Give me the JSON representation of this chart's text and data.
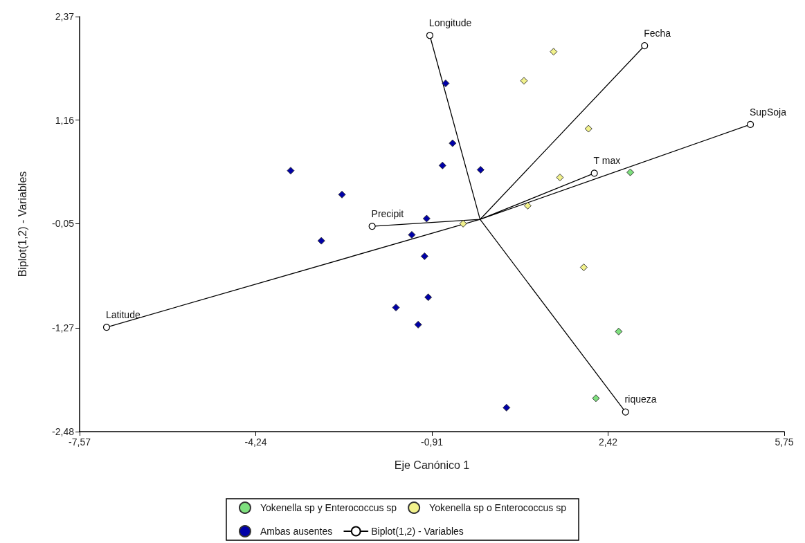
{
  "chart_data": {
    "type": "scatter",
    "xlabel": "Eje Canónico 1",
    "ylabel": "Biplot(1,2) - Variables",
    "xlim": [
      -7.57,
      5.75
    ],
    "xticks": [
      {
        "value": -7.57,
        "label": "-7,57"
      },
      {
        "value": -4.24,
        "label": "-4,24"
      },
      {
        "value": -0.91,
        "label": "-0,91"
      },
      {
        "value": 2.42,
        "label": "2,42"
      },
      {
        "value": 5.75,
        "label": "5,75"
      }
    ],
    "ylim": [
      -2.48,
      2.37
    ],
    "yticks": [
      {
        "value": -2.48,
        "label": "-2,48"
      },
      {
        "value": -1.27,
        "label": "-1,27"
      },
      {
        "value": -0.05,
        "label": "-0,05"
      },
      {
        "value": 1.16,
        "label": "1,16"
      },
      {
        "value": 2.37,
        "label": "2,37"
      }
    ],
    "grid": false,
    "legend": "bottom",
    "marker": "diamond",
    "series": [
      {
        "name": "Yokenella sp y Enterococcus sp",
        "color": "#7ee07e",
        "x": [
          2.84,
          2.62,
          2.19
        ],
        "values": [
          0.55,
          -1.31,
          -2.09
        ]
      },
      {
        "name": "Yokenella sp o Enterococcus sp",
        "color": "#f2f28c",
        "x": [
          1.39,
          0.83,
          2.05,
          1.51,
          0.9,
          -0.32,
          1.96
        ],
        "values": [
          1.96,
          1.62,
          1.06,
          0.49,
          0.16,
          -0.05,
          -0.56
        ]
      },
      {
        "name": "Ambas ausentes",
        "color": "#0000a8",
        "x": [
          -0.65,
          -0.52,
          -0.71,
          0.01,
          -3.58,
          -2.61,
          -1.01,
          -1.29,
          -3.0,
          -1.05,
          -0.98,
          -1.59,
          -1.17,
          0.5
        ],
        "values": [
          1.59,
          0.89,
          0.63,
          0.58,
          0.57,
          0.29,
          0.01,
          -0.18,
          -0.25,
          -0.43,
          -0.91,
          -1.03,
          -1.23,
          -2.2
        ]
      },
      {
        "name": "Biplot(1,2) - Variables",
        "type": "line",
        "marker": "circle",
        "color": "#000000",
        "x": [
          0,
          -0.95,
          null,
          0,
          3.11,
          null,
          0,
          5.11,
          null,
          0,
          2.16,
          null,
          0,
          -2.04,
          null,
          0,
          -7.06,
          null,
          0,
          2.75
        ],
        "values": [
          0,
          2.15,
          null,
          0,
          2.03,
          null,
          0,
          1.11,
          null,
          0,
          0.54,
          null,
          0,
          -0.08,
          null,
          0,
          -1.26,
          null,
          0,
          -2.25
        ],
        "value_labels": [
          null,
          "Longitude",
          null,
          null,
          "Fecha",
          null,
          null,
          "SupSoja",
          null,
          null,
          "T max",
          null,
          null,
          "Precipit",
          null,
          null,
          "Latitude",
          null,
          null,
          "riqueza"
        ]
      }
    ]
  }
}
